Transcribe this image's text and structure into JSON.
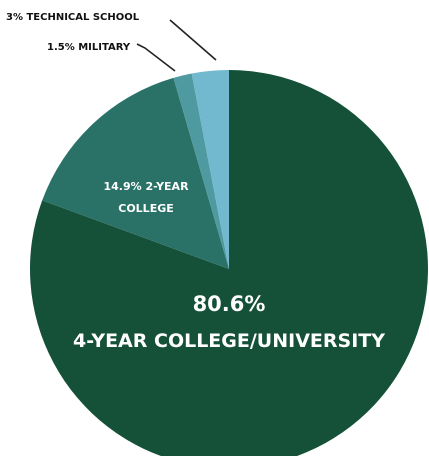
{
  "chart_data": {
    "type": "pie",
    "slices": [
      {
        "value": 80.6,
        "pct_text": "80.6%",
        "name_lines": [
          "4-YEAR COLLEGE/UNIVERSITY"
        ],
        "color": "#155138",
        "text_color": "#ffffff"
      },
      {
        "value": 14.9,
        "pct_text": "14.9%",
        "name_lines": [
          "2-YEAR",
          "COLLEGE"
        ],
        "color": "#2a7268",
        "text_color": "#ffffff"
      },
      {
        "value": 1.5,
        "pct_text": "1.5%",
        "name_lines": [
          "MILITARY"
        ],
        "color": "#4f9aa0",
        "text_color": "#111111"
      },
      {
        "value": 3.0,
        "pct_text": "3%",
        "name_lines": [
          "TECHNICAL SCHOOL"
        ],
        "color": "#72b9cf",
        "text_color": "#111111"
      }
    ],
    "start": "top",
    "direction": "clockwise",
    "legend": "none"
  }
}
